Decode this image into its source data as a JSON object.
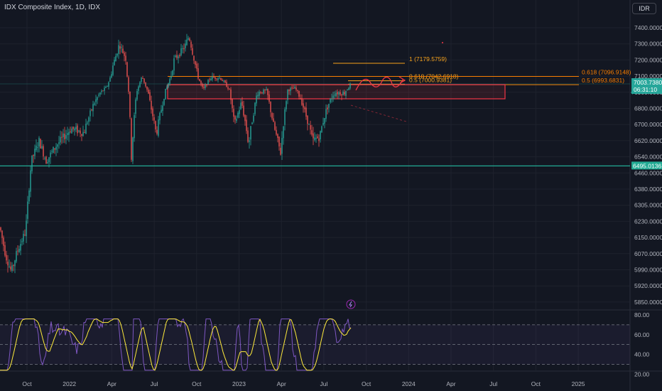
{
  "header": {
    "title": "IDX Composite Index, 1D, IDX"
  },
  "currency_button": {
    "label": "IDR"
  },
  "price_axis": {
    "ticks": [
      {
        "label": "7400.0000",
        "value": 7400
      },
      {
        "label": "7300.0000",
        "value": 7300
      },
      {
        "label": "7200.0000",
        "value": 7200
      },
      {
        "label": "7100.0000",
        "value": 7100
      },
      {
        "label": "6900.0000",
        "value": 6900
      },
      {
        "label": "6800.0000",
        "value": 6800
      },
      {
        "label": "6700.0000",
        "value": 6700
      },
      {
        "label": "6620.0000",
        "value": 6620
      },
      {
        "label": "6540.0000",
        "value": 6540
      },
      {
        "label": "6460.0000",
        "value": 6460
      },
      {
        "label": "6380.0000",
        "value": 6380
      },
      {
        "label": "6305.0000",
        "value": 6305
      },
      {
        "label": "6230.0000",
        "value": 6230
      },
      {
        "label": "6150.0000",
        "value": 6150
      },
      {
        "label": "6070.0000",
        "value": 6070
      },
      {
        "label": "5990.0000",
        "value": 5990
      },
      {
        "label": "5920.0000",
        "value": 5920
      },
      {
        "label": "5850.0000",
        "value": 5850
      }
    ]
  },
  "time_axis": {
    "ticks": [
      {
        "label": "Oct",
        "month": 0
      },
      {
        "label": "2022",
        "month": 3
      },
      {
        "label": "Apr",
        "month": 6
      },
      {
        "label": "Jul",
        "month": 9
      },
      {
        "label": "Oct",
        "month": 12
      },
      {
        "label": "2023",
        "month": 15
      },
      {
        "label": "Apr",
        "month": 18
      },
      {
        "label": "Jul",
        "month": 21
      },
      {
        "label": "Oct",
        "month": 24
      },
      {
        "label": "2024",
        "month": 27
      },
      {
        "label": "Apr",
        "month": 30
      },
      {
        "label": "Jul",
        "month": 33
      },
      {
        "label": "Oct",
        "month": 36
      },
      {
        "label": "2025",
        "month": 39
      }
    ]
  },
  "current_price": {
    "value": "7003.7380",
    "countdown": "06:31:10",
    "price": 7003.738,
    "color": "#26a69a"
  },
  "support_line": {
    "value": "6495.0136",
    "price": 6495.0136,
    "color": "#22ab94"
  },
  "fib_levels": [
    {
      "label": "1 (7179.5759)",
      "price": 7179.5759,
      "color": "#f7a21b"
    },
    {
      "label": "0.618 (7042.6918)",
      "price": 7042.6918,
      "color": "#f7a21b"
    },
    {
      "label": "0.5 (7000.9381)",
      "price": 7000.9381,
      "color": "#f7a21b"
    },
    {
      "label": "0.618 (7096.9148)",
      "price": 7096.9148,
      "color": "#f57c00"
    },
    {
      "label": "0.5 (6993.6831)",
      "price": 6993.6831,
      "color": "#f57c00"
    }
  ],
  "rsi_axis": {
    "ticks": [
      {
        "label": "80.00",
        "value": 80
      },
      {
        "label": "60.00",
        "value": 60
      },
      {
        "label": "40.00",
        "value": 40
      },
      {
        "label": "20.00",
        "value": 20
      }
    ],
    "band_upper": 70,
    "band_lower": 30,
    "mid": 50
  },
  "colors": {
    "up": "#26a69a",
    "down": "#ef5350",
    "rsi": "#7e57c2",
    "rsi_ma": "#ffeb3b",
    "zone": "#f23645"
  },
  "icons": {
    "lightning": "lightning-icon"
  }
}
